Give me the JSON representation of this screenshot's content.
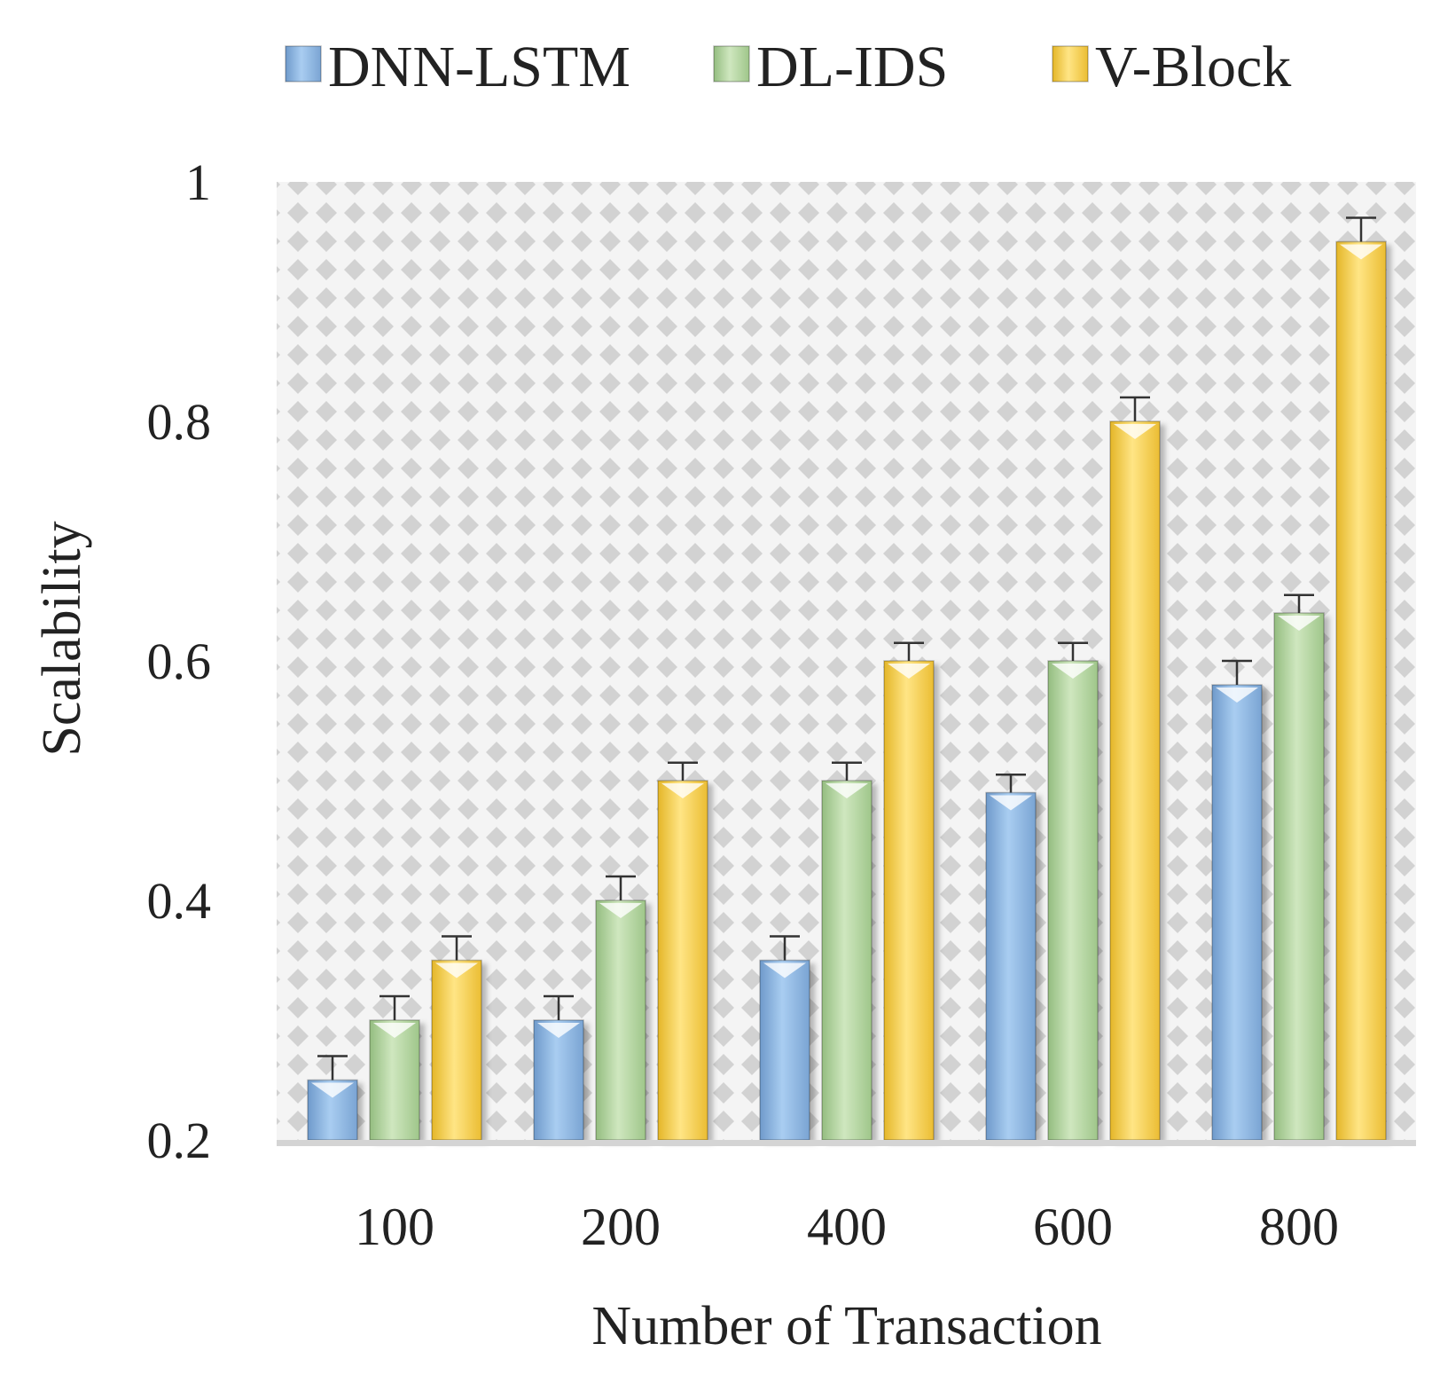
{
  "chart_data": {
    "type": "bar",
    "title": "",
    "xlabel": "Number of Transaction",
    "ylabel": "Scalability",
    "categories": [
      "100",
      "200",
      "400",
      "600",
      "800"
    ],
    "series": [
      {
        "name": "DNN-LSTM",
        "values": [
          0.25,
          0.3,
          0.35,
          0.49,
          0.58
        ],
        "errors": [
          0.02,
          0.02,
          0.02,
          0.015,
          0.02
        ]
      },
      {
        "name": "DL-IDS",
        "values": [
          0.3,
          0.4,
          0.5,
          0.6,
          0.64
        ],
        "errors": [
          0.02,
          0.02,
          0.015,
          0.015,
          0.015
        ]
      },
      {
        "name": "V-Block",
        "values": [
          0.35,
          0.5,
          0.6,
          0.8,
          0.95
        ],
        "errors": [
          0.02,
          0.015,
          0.015,
          0.02,
          0.02
        ]
      }
    ],
    "ylim": [
      0.2,
      1.0
    ],
    "yticks": [
      0.2,
      0.4,
      0.6,
      0.8,
      1
    ],
    "ytick_labels": [
      "0.2",
      "0.4",
      "0.6",
      "0.8",
      "1"
    ],
    "legend_position": "top",
    "grid": false,
    "background_pattern": "grey diamond dots"
  },
  "colors": {
    "DNN-LSTM": "#8fb6e2",
    "DL-IDS": "#b3d69f",
    "V-Block": "#f6cf4e",
    "axis": "#d0d0d0",
    "pattern": "#cfcfcf"
  }
}
